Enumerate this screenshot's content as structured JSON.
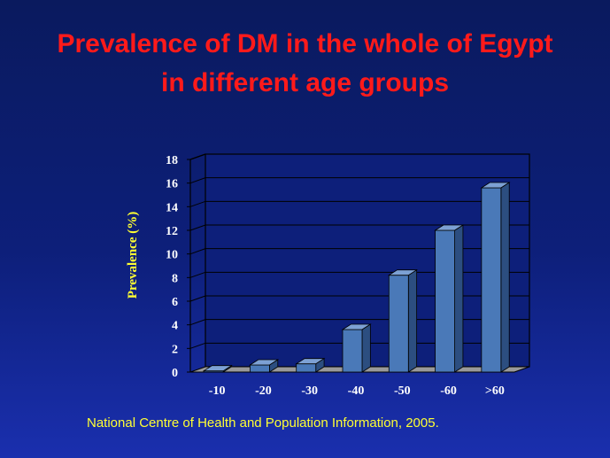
{
  "title": {
    "line1": "Prevalence of DM in the whole of Egypt",
    "line2": "in different age groups"
  },
  "footnote": "National Centre of Health and Population Information, 2005.",
  "colors": {
    "title": "#ff1a1a",
    "ylabel": "#ffff33",
    "footnote": "#ffff33",
    "ticks": "#ffffff",
    "bar_front": "#4a79b8",
    "bar_top": "#7da1d4",
    "bar_side": "#2c4e80",
    "floor": "#9a9a9a",
    "plot_bg": "#0d1f7a"
  },
  "chart_data": {
    "type": "bar",
    "categories": [
      "-10",
      "-20",
      "-30",
      "-40",
      "-50",
      "-60",
      ">60"
    ],
    "values": [
      0.1,
      0.6,
      0.7,
      3.6,
      8.2,
      12.0,
      15.6
    ],
    "ylabel": "Prevalence (%)",
    "ylim": [
      0,
      18
    ],
    "yticks": [
      "0",
      "2",
      "4",
      "6",
      "8",
      "10",
      "12",
      "14",
      "16",
      "18"
    ],
    "grid": true,
    "style": "3d"
  }
}
